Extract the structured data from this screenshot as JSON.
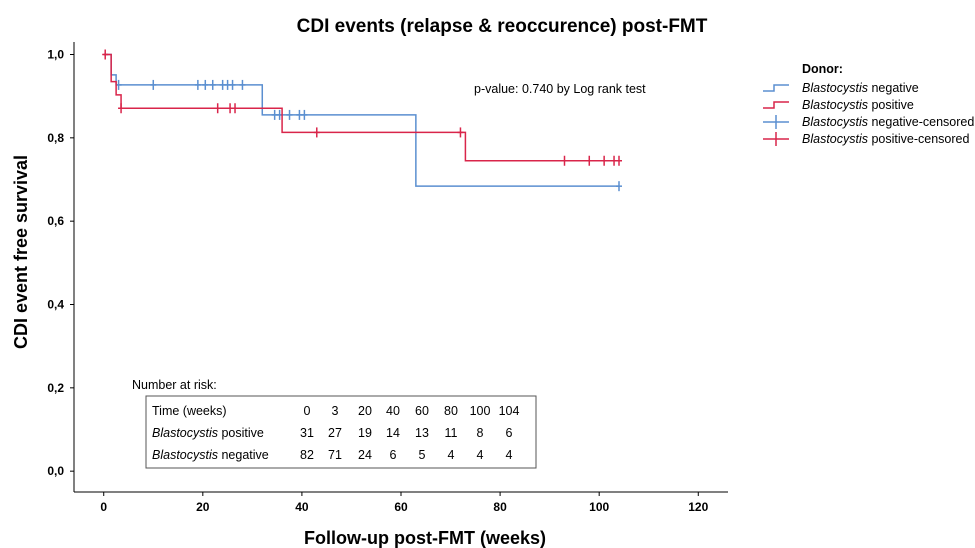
{
  "chart_data": {
    "type": "line",
    "title": "CDI events (relapse & reoccurence) post-FMT",
    "xlabel": "Follow-up post-FMT (weeks)",
    "ylabel": "CDI event free survival",
    "xlim": [
      -6,
      126
    ],
    "ylim": [
      -0.05,
      1.03
    ],
    "xticks": [
      0,
      20,
      40,
      60,
      80,
      100,
      120
    ],
    "xtick_labels": [
      "0",
      "20",
      "40",
      "60",
      "80",
      "100",
      "120"
    ],
    "yticks": [
      0.0,
      0.2,
      0.4,
      0.6,
      0.8,
      1.0
    ],
    "ytick_labels": [
      "0,0",
      "0,2",
      "0,4",
      "0,6",
      "0,8",
      "1,0"
    ],
    "grid": false,
    "annotation": "p-value: 0.740 by Log rank test",
    "legend": {
      "title": "Donor:",
      "placement": "right",
      "entries": [
        {
          "italic": "Blastocystis",
          "rest": " negative"
        },
        {
          "italic": "Blastocystis",
          "rest": " positive"
        },
        {
          "italic": "Blastocystis",
          "rest": " negative-censored"
        },
        {
          "italic": "Blastocystis",
          "rest": " positive-censored"
        }
      ]
    },
    "series": [
      {
        "name": "Blastocystis negative",
        "color": "#5b8fd0",
        "steps": [
          [
            0,
            1.0
          ],
          [
            1.5,
            0.951
          ],
          [
            2.5,
            0.927
          ],
          [
            32,
            0.855
          ],
          [
            63,
            0.684
          ],
          [
            104,
            0.684
          ]
        ],
        "censored": [
          [
            3,
            0.927
          ],
          [
            10,
            0.927
          ],
          [
            19,
            0.927
          ],
          [
            20.5,
            0.927
          ],
          [
            22,
            0.927
          ],
          [
            24,
            0.927
          ],
          [
            25,
            0.927
          ],
          [
            26,
            0.927
          ],
          [
            28,
            0.927
          ],
          [
            34.5,
            0.855
          ],
          [
            35.5,
            0.855
          ],
          [
            37.5,
            0.855
          ],
          [
            39.5,
            0.855
          ],
          [
            40.5,
            0.855
          ],
          [
            104,
            0.684
          ]
        ]
      },
      {
        "name": "Blastocystis positive",
        "color": "#d9254a",
        "steps": [
          [
            0,
            1.0
          ],
          [
            1.5,
            0.935
          ],
          [
            2.5,
            0.903
          ],
          [
            3.5,
            0.871
          ],
          [
            36,
            0.813
          ],
          [
            73,
            0.745
          ],
          [
            104,
            0.745
          ]
        ],
        "censored": [
          [
            0.3,
            1.0
          ],
          [
            3.5,
            0.871
          ],
          [
            23,
            0.871
          ],
          [
            25.5,
            0.871
          ],
          [
            26.5,
            0.871
          ],
          [
            43,
            0.813
          ],
          [
            72,
            0.813
          ],
          [
            93,
            0.745
          ],
          [
            98,
            0.745
          ],
          [
            101,
            0.745
          ],
          [
            103,
            0.745
          ],
          [
            104,
            0.745
          ]
        ]
      }
    ],
    "risk_table": {
      "caption": "Number at risk:",
      "header_label": "Time (weeks)",
      "times": [
        "0",
        "3",
        "20",
        "40",
        "60",
        "80",
        "100",
        "104"
      ],
      "rows": [
        {
          "italic": "Blastocystis",
          "rest": " positive",
          "values": [
            "31",
            "27",
            "19",
            "14",
            "13",
            "11",
            "8",
            "6"
          ]
        },
        {
          "italic": "Blastocystis",
          "rest": " negative",
          "values": [
            "82",
            "71",
            "24",
            "6",
            "5",
            "4",
            "4",
            "4"
          ]
        }
      ]
    }
  }
}
